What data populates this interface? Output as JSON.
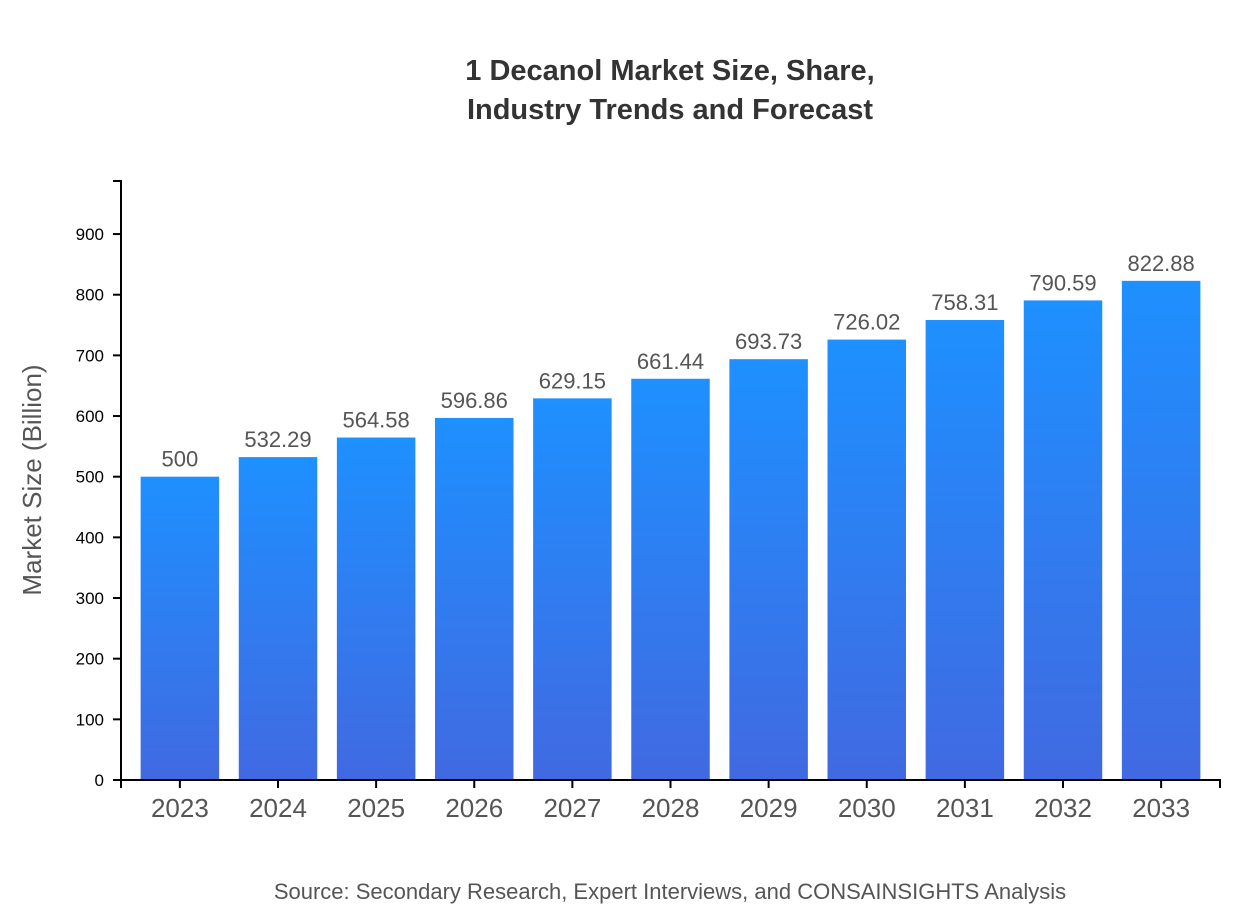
{
  "chart_data": {
    "type": "bar",
    "title_lines": [
      "1 Decanol Market Size, Share,",
      "Industry Trends and Forecast"
    ],
    "categories": [
      "2023",
      "2024",
      "2025",
      "2026",
      "2027",
      "2028",
      "2029",
      "2030",
      "2031",
      "2032",
      "2033"
    ],
    "values": [
      500,
      532.29,
      564.58,
      596.86,
      629.15,
      661.44,
      693.73,
      726.02,
      758.31,
      790.59,
      822.88
    ],
    "data_labels": [
      "500",
      "532.29",
      "564.58",
      "596.86",
      "629.15",
      "661.44",
      "693.73",
      "726.02",
      "758.31",
      "790.59",
      "822.88"
    ],
    "xlabel": "",
    "ylabel": "Market Size (Billion)",
    "ylim": [
      0,
      987.456
    ],
    "yticks": [
      0,
      100,
      200,
      300,
      400,
      500,
      600,
      700,
      800,
      900
    ],
    "grid": false,
    "colors": {
      "bar_top": "#1e90ff",
      "bar_bottom": "#4169e1"
    },
    "source": "Source: Secondary Research, Expert Interviews, and CONSAINSIGHTS Analysis"
  }
}
